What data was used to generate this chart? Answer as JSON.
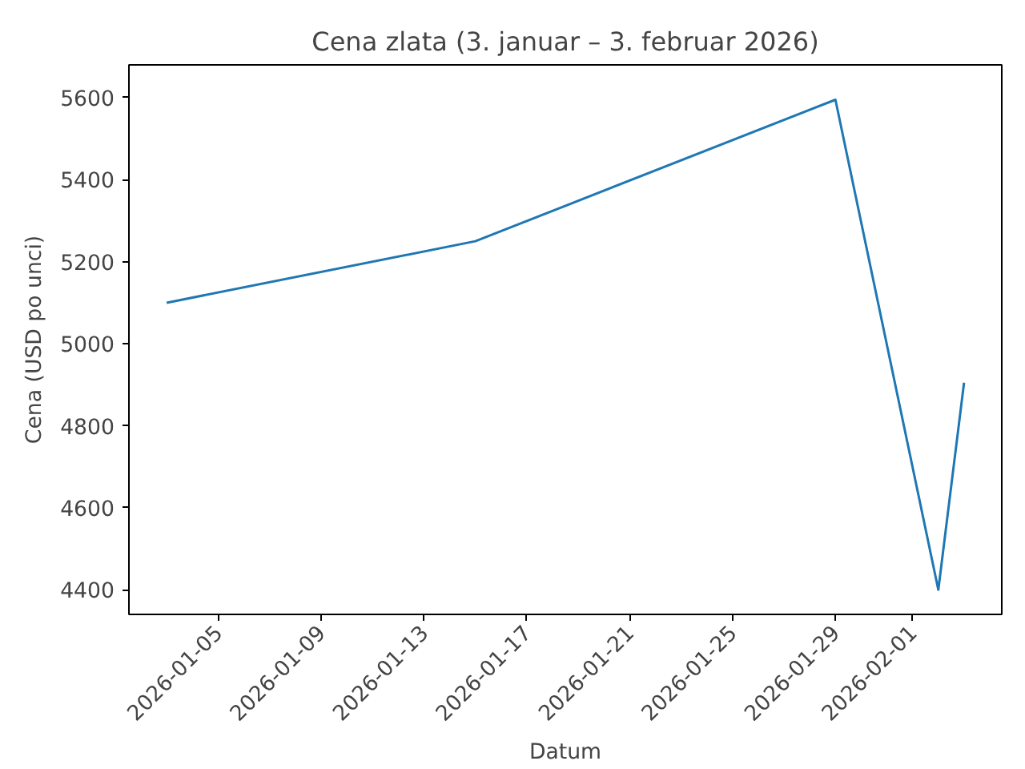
{
  "chart_data": {
    "type": "line",
    "title": "Cena zlata (3. januar – 3. februar 2026)",
    "xlabel": "Datum",
    "ylabel": "Cena (USD po unci)",
    "x": [
      "2026-01-03",
      "2026-01-15",
      "2026-01-29",
      "2026-02-02",
      "2026-02-03"
    ],
    "series": [
      {
        "color": "#1f77b4",
        "values": [
          5100,
          5250,
          5595,
          4400,
          4905
        ]
      }
    ],
    "xlim": [
      "2026-01-01T12:48",
      "2026-02-04T11:12"
    ],
    "ylim": [
      4340,
      5680
    ],
    "xticks": [
      "2026-01-05",
      "2026-01-09",
      "2026-01-13",
      "2026-01-17",
      "2026-01-21",
      "2026-01-25",
      "2026-01-29",
      "2026-02-01"
    ],
    "yticks": [
      4400,
      4600,
      4800,
      5000,
      5200,
      5400,
      5600
    ],
    "grid": false,
    "line_style": "solid"
  }
}
